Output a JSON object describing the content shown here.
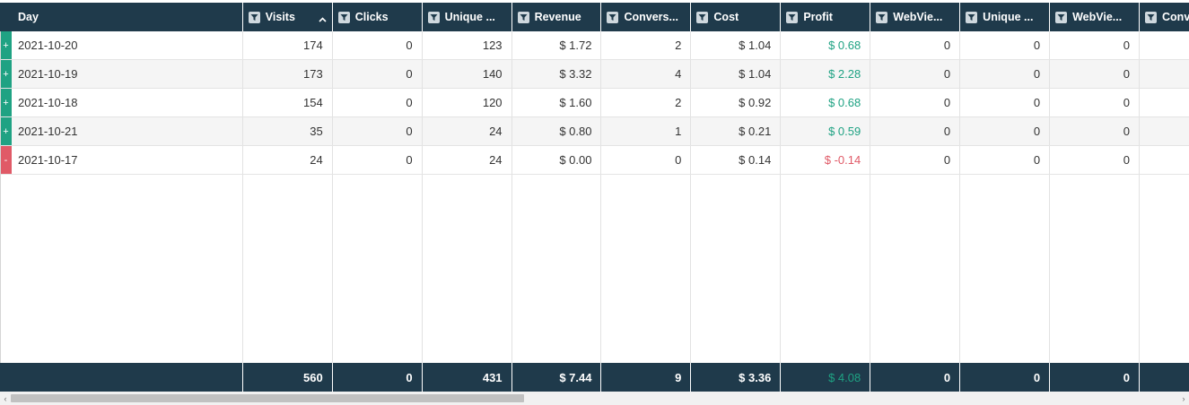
{
  "columns": [
    {
      "key": "day",
      "label": "Day",
      "width": 271,
      "filter": false,
      "sort": false
    },
    {
      "key": "visits",
      "label": "Visits",
      "width": 100,
      "filter": true,
      "sort": true
    },
    {
      "key": "clicks",
      "label": "Clicks",
      "width": 100,
      "filter": true,
      "sort": false
    },
    {
      "key": "unique",
      "label": "Unique ...",
      "width": 100,
      "filter": true,
      "sort": false
    },
    {
      "key": "revenue",
      "label": "Revenue",
      "width": 100,
      "filter": true,
      "sort": false
    },
    {
      "key": "conversions",
      "label": "Convers...",
      "width": 100,
      "filter": true,
      "sort": false
    },
    {
      "key": "cost",
      "label": "Cost",
      "width": 100,
      "filter": true,
      "sort": false
    },
    {
      "key": "profit",
      "label": "Profit",
      "width": 100,
      "filter": true,
      "sort": false
    },
    {
      "key": "webview1",
      "label": "WebVie...",
      "width": 100,
      "filter": true,
      "sort": false
    },
    {
      "key": "unique2",
      "label": "Unique ...",
      "width": 100,
      "filter": true,
      "sort": false
    },
    {
      "key": "webview2",
      "label": "WebVie...",
      "width": 100,
      "filter": true,
      "sort": false
    },
    {
      "key": "conv2",
      "label": "Conv",
      "width": 70,
      "filter": true,
      "sort": false
    }
  ],
  "rows": [
    {
      "expander": "+",
      "day": "2021-10-20",
      "visits": "174",
      "clicks": "0",
      "unique": "123",
      "revenue": "$ 1.72",
      "conversions": "2",
      "cost": "$ 1.04",
      "profit": "$ 0.68",
      "profit_sign": "pos",
      "webview1": "0",
      "unique2": "0",
      "webview2": "0",
      "conv2": ""
    },
    {
      "expander": "+",
      "day": "2021-10-19",
      "visits": "173",
      "clicks": "0",
      "unique": "140",
      "revenue": "$ 3.32",
      "conversions": "4",
      "cost": "$ 1.04",
      "profit": "$ 2.28",
      "profit_sign": "pos",
      "webview1": "0",
      "unique2": "0",
      "webview2": "0",
      "conv2": ""
    },
    {
      "expander": "+",
      "day": "2021-10-18",
      "visits": "154",
      "clicks": "0",
      "unique": "120",
      "revenue": "$ 1.60",
      "conversions": "2",
      "cost": "$ 0.92",
      "profit": "$ 0.68",
      "profit_sign": "pos",
      "webview1": "0",
      "unique2": "0",
      "webview2": "0",
      "conv2": ""
    },
    {
      "expander": "+",
      "day": "2021-10-21",
      "visits": "35",
      "clicks": "0",
      "unique": "24",
      "revenue": "$ 0.80",
      "conversions": "1",
      "cost": "$ 0.21",
      "profit": "$ 0.59",
      "profit_sign": "pos",
      "webview1": "0",
      "unique2": "0",
      "webview2": "0",
      "conv2": ""
    },
    {
      "expander": "-",
      "day": "2021-10-17",
      "visits": "24",
      "clicks": "0",
      "unique": "24",
      "revenue": "$ 0.00",
      "conversions": "0",
      "cost": "$ 0.14",
      "profit": "$ -0.14",
      "profit_sign": "neg",
      "webview1": "0",
      "unique2": "0",
      "webview2": "0",
      "conv2": ""
    }
  ],
  "totals": {
    "day": "",
    "visits": "560",
    "clicks": "0",
    "unique": "431",
    "revenue": "$ 7.44",
    "conversions": "9",
    "cost": "$ 3.36",
    "profit": "$ 4.08",
    "webview1": "0",
    "unique2": "0",
    "webview2": "0",
    "conv2": ""
  },
  "colors": {
    "header_bg": "#1f3a4b",
    "positive": "#1fa283",
    "negative": "#e05a67"
  },
  "scrollbar": {
    "left_arrow": "‹",
    "right_arrow": "›"
  }
}
